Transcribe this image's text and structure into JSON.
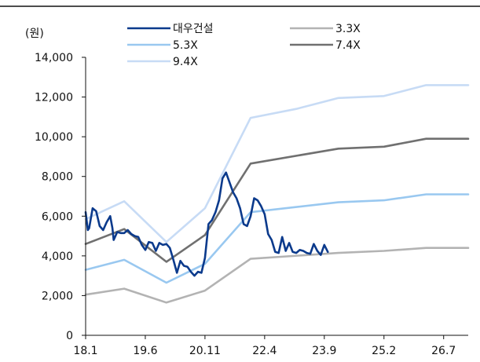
{
  "chart_data": {
    "type": "line",
    "unit_label": "(원)",
    "ylim": [
      0,
      14000
    ],
    "yticks": [
      "0",
      "2,000",
      "4,000",
      "6,000",
      "8,000",
      "10,000",
      "12,000",
      "14,000"
    ],
    "xticks": [
      "18.1",
      "19.6",
      "20.11",
      "22.4",
      "23.9",
      "25.2",
      "26.7"
    ],
    "xlim": [
      "2018-01",
      "2027-02"
    ],
    "legend_placement": "top",
    "grid": false,
    "series": [
      {
        "name": "대우건설",
        "color": "#0b3a8c",
        "width": 2.6,
        "values": [
          [
            "2018-01",
            6200
          ],
          [
            "2018-01-20",
            5300
          ],
          [
            "2018-02",
            5400
          ],
          [
            "2018-03",
            6400
          ],
          [
            "2018-04",
            6250
          ],
          [
            "2018-05",
            5500
          ],
          [
            "2018-06",
            5300
          ],
          [
            "2018-07",
            5700
          ],
          [
            "2018-08",
            6000
          ],
          [
            "2018-08-20",
            5400
          ],
          [
            "2018-09",
            4800
          ],
          [
            "2018-10",
            5200
          ],
          [
            "2018-11",
            5150
          ],
          [
            "2018-12",
            5150
          ],
          [
            "2019-01",
            5300
          ],
          [
            "2019-02",
            5100
          ],
          [
            "2019-03",
            5000
          ],
          [
            "2019-04",
            4950
          ],
          [
            "2019-05",
            4550
          ],
          [
            "2019-06",
            4300
          ],
          [
            "2019-07",
            4700
          ],
          [
            "2019-08",
            4650
          ],
          [
            "2019-09",
            4250
          ],
          [
            "2019-10",
            4650
          ],
          [
            "2019-11",
            4550
          ],
          [
            "2019-12",
            4600
          ],
          [
            "2020-01",
            4400
          ],
          [
            "2020-02",
            3800
          ],
          [
            "2020-03",
            3150
          ],
          [
            "2020-04",
            3750
          ],
          [
            "2020-05",
            3500
          ],
          [
            "2020-06",
            3450
          ],
          [
            "2020-07",
            3200
          ],
          [
            "2020-08",
            3000
          ],
          [
            "2020-09",
            3200
          ],
          [
            "2020-10",
            3150
          ],
          [
            "2020-11",
            3900
          ],
          [
            "2020-12",
            5600
          ],
          [
            "2021-01",
            5800
          ],
          [
            "2021-02",
            6200
          ],
          [
            "2021-03",
            6800
          ],
          [
            "2021-04",
            7900
          ],
          [
            "2021-05",
            8200
          ],
          [
            "2021-06",
            7700
          ],
          [
            "2021-07",
            7200
          ],
          [
            "2021-08",
            6900
          ],
          [
            "2021-09",
            6400
          ],
          [
            "2021-10",
            5600
          ],
          [
            "2021-11",
            5500
          ],
          [
            "2021-12",
            6000
          ],
          [
            "2022-01",
            6900
          ],
          [
            "2022-02",
            6800
          ],
          [
            "2022-03",
            6500
          ],
          [
            "2022-04",
            6100
          ],
          [
            "2022-05",
            5100
          ],
          [
            "2022-06",
            4800
          ],
          [
            "2022-07",
            4200
          ],
          [
            "2022-08",
            4150
          ],
          [
            "2022-09",
            4950
          ],
          [
            "2022-10",
            4250
          ],
          [
            "2022-11",
            4650
          ],
          [
            "2022-12",
            4200
          ],
          [
            "2023-01",
            4150
          ],
          [
            "2023-02",
            4300
          ],
          [
            "2023-03",
            4250
          ],
          [
            "2023-04",
            4150
          ],
          [
            "2023-05",
            4100
          ],
          [
            "2023-06",
            4600
          ],
          [
            "2023-07",
            4250
          ],
          [
            "2023-08",
            4050
          ],
          [
            "2023-09",
            4550
          ],
          [
            "2023-10",
            4200
          ]
        ]
      },
      {
        "name": "3.3X",
        "color": "#b3b3b3",
        "width": 2.6,
        "values": [
          [
            "2018-01",
            2050
          ],
          [
            "2018-12",
            2350
          ],
          [
            "2019-12",
            1650
          ],
          [
            "2020-11",
            2250
          ],
          [
            "2021-12",
            3850
          ],
          [
            "2024-01",
            4150
          ],
          [
            "2025-02",
            4250
          ],
          [
            "2026-02",
            4400
          ],
          [
            "2027-02",
            4400
          ]
        ]
      },
      {
        "name": "5.3X",
        "color": "#99c8f0",
        "width": 2.6,
        "values": [
          [
            "2018-01",
            3300
          ],
          [
            "2018-12",
            3800
          ],
          [
            "2019-12",
            2650
          ],
          [
            "2020-11",
            3600
          ],
          [
            "2021-12",
            6200
          ],
          [
            "2024-01",
            6700
          ],
          [
            "2025-02",
            6800
          ],
          [
            "2026-02",
            7100
          ],
          [
            "2027-02",
            7100
          ]
        ]
      },
      {
        "name": "7.4X",
        "color": "#707070",
        "width": 2.6,
        "values": [
          [
            "2018-01",
            4600
          ],
          [
            "2018-12",
            5350
          ],
          [
            "2019-12",
            3700
          ],
          [
            "2020-11",
            5050
          ],
          [
            "2021-12",
            8650
          ],
          [
            "2024-01",
            9400
          ],
          [
            "2025-02",
            9500
          ],
          [
            "2026-02",
            9900
          ],
          [
            "2027-02",
            9900
          ]
        ]
      },
      {
        "name": "9.4X",
        "color": "#c7dbf5",
        "width": 2.6,
        "values": [
          [
            "2018-01",
            5850
          ],
          [
            "2018-12",
            6750
          ],
          [
            "2019-12",
            4700
          ],
          [
            "2020-11",
            6400
          ],
          [
            "2021-12",
            10950
          ],
          [
            "2023-01",
            11400
          ],
          [
            "2024-01",
            11950
          ],
          [
            "2025-02",
            12050
          ],
          [
            "2026-02",
            12600
          ],
          [
            "2027-02",
            12600
          ]
        ]
      }
    ]
  }
}
